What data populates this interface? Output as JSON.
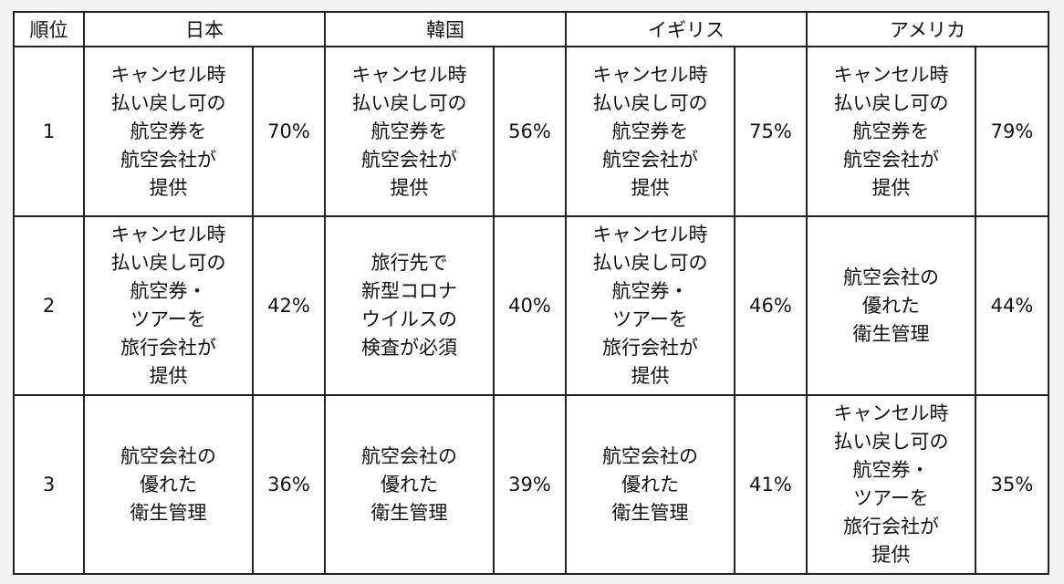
{
  "headers": {
    "rank": "順位",
    "japan": "日本",
    "korea": "韓国",
    "uk": "イギリス",
    "usa": "アメリカ"
  },
  "rows": [
    {
      "rank": "1",
      "japan": {
        "item": "キャンセル時\n払い戻し可の\n航空券を\n航空会社が\n提供",
        "pct": "70%"
      },
      "korea": {
        "item": "キャンセル時\n払い戻し可の\n航空券を\n航空会社が\n提供",
        "pct": "56%"
      },
      "uk": {
        "item": "キャンセル時\n払い戻し可の\n航空券を\n航空会社が\n提供",
        "pct": "75%"
      },
      "usa": {
        "item": "キャンセル時\n払い戻し可の\n航空券を\n航空会社が\n提供",
        "pct": "79%"
      }
    },
    {
      "rank": "2",
      "japan": {
        "item": "キャンセル時\n払い戻し可の\n航空券・\nツアーを\n旅行会社が\n提供",
        "pct": "42%"
      },
      "korea": {
        "item": "旅行先で\n新型コロナ\nウイルスの\n検査が必須",
        "pct": "40%"
      },
      "uk": {
        "item": "キャンセル時\n払い戻し可の\n航空券・\nツアーを\n旅行会社が\n提供",
        "pct": "46%"
      },
      "usa": {
        "item": "航空会社の\n優れた\n衛生管理",
        "pct": "44%"
      }
    },
    {
      "rank": "3",
      "japan": {
        "item": "航空会社の\n優れた\n衛生管理",
        "pct": "36%"
      },
      "korea": {
        "item": "航空会社の\n優れた\n衛生管理",
        "pct": "39%"
      },
      "uk": {
        "item": "航空会社の\n優れた\n衛生管理",
        "pct": "41%"
      },
      "usa": {
        "item": "キャンセル時\n払い戻し可の\n航空券・\nツアーを\n旅行会社が\n提供",
        "pct": "35%"
      }
    }
  ]
}
